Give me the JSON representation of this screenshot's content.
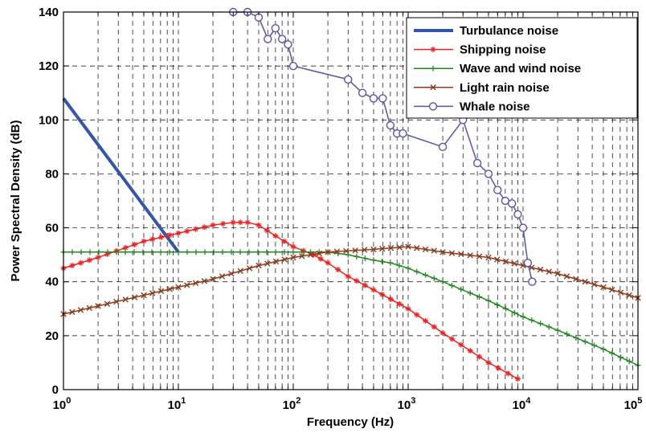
{
  "chart_data": {
    "type": "line",
    "title": "",
    "xlabel": "Frequency (Hz)",
    "ylabel": "Power Spectral Density (dB)",
    "xscale": "log",
    "xlim": [
      1,
      100000
    ],
    "ylim": [
      0,
      140
    ],
    "grid": true,
    "legend_position": "top-right",
    "x_ticks": [
      {
        "base": "10",
        "exp": "0",
        "value": 1
      },
      {
        "base": "10",
        "exp": "1",
        "value": 10
      },
      {
        "base": "10",
        "exp": "2",
        "value": 100
      },
      {
        "base": "10",
        "exp": "3",
        "value": 1000
      },
      {
        "base": "10",
        "exp": "4",
        "value": 10000
      },
      {
        "base": "10",
        "exp": "5",
        "value": 100000
      }
    ],
    "y_ticks": [
      "0",
      "20",
      "40",
      "60",
      "80",
      "100",
      "120",
      "140"
    ],
    "series": [
      {
        "name": "Turbulance noise",
        "color": "#3355aa",
        "marker": "none",
        "x": [
          1,
          10
        ],
        "y": [
          108,
          51
        ]
      },
      {
        "name": "Shipping noise",
        "color": "#ee2222",
        "marker": "star",
        "x": [
          1,
          2,
          5,
          10,
          20,
          30,
          40,
          50,
          70,
          100,
          150,
          200,
          300,
          500,
          1000,
          2000,
          5000,
          9000
        ],
        "y": [
          45,
          49,
          55,
          58,
          61,
          62,
          62,
          61,
          57,
          53,
          50,
          47,
          42,
          37,
          30,
          21,
          10,
          4
        ]
      },
      {
        "name": "Wave and wind noise",
        "color": "#228822",
        "marker": "plus",
        "x": [
          1,
          10,
          100,
          200,
          300,
          500,
          700,
          1000,
          2000,
          5000,
          10000,
          20000,
          50000,
          100000
        ],
        "y": [
          51,
          51,
          51,
          51,
          50,
          48,
          47,
          45,
          40,
          33,
          27,
          22,
          15,
          9
        ]
      },
      {
        "name": "Light rain noise",
        "color": "#8b3a1a",
        "marker": "x",
        "x": [
          1,
          2,
          5,
          10,
          20,
          50,
          100,
          200,
          500,
          1000,
          2000,
          5000,
          10000,
          20000,
          50000,
          100000
        ],
        "y": [
          28,
          31,
          35,
          38,
          41,
          46,
          49,
          51,
          52,
          53,
          51,
          49,
          46,
          43,
          38,
          34
        ]
      },
      {
        "name": "Whale noise",
        "color": "#5555aa",
        "marker": "circle",
        "x": [
          30,
          40,
          50,
          60,
          70,
          80,
          90,
          100,
          300,
          400,
          500,
          600,
          700,
          800,
          900,
          2000,
          3000,
          4000,
          5000,
          6000,
          7000,
          8000,
          9000,
          10000,
          11000,
          12000
        ],
        "y": [
          140,
          140,
          138,
          130,
          134,
          130,
          128,
          120,
          115,
          110,
          108,
          108,
          98,
          95,
          95,
          90,
          100,
          84,
          80,
          74,
          70,
          69,
          65,
          60,
          47,
          40
        ]
      }
    ]
  }
}
